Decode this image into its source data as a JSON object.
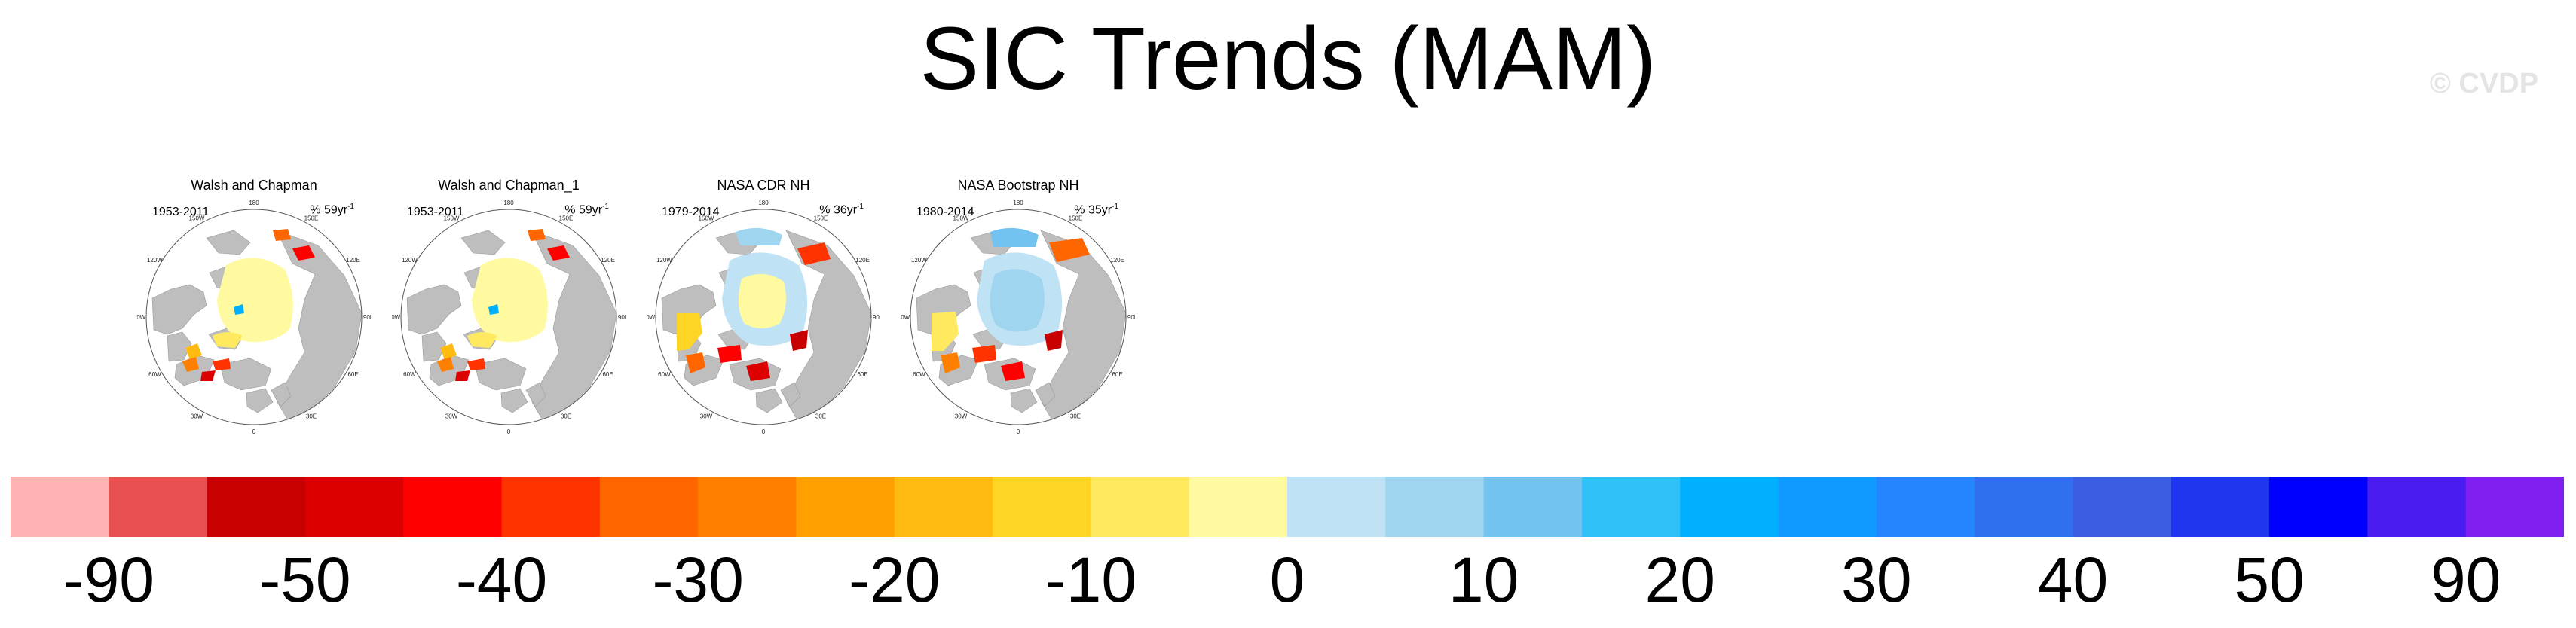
{
  "title": "SIC Trends (MAM)",
  "watermark": "© CVDP",
  "panels": [
    {
      "title": "Walsh and Chapman",
      "years": "1953-2011",
      "scale": "% 59yr",
      "scale_exp": "-1",
      "style": "walsh"
    },
    {
      "title": "Walsh and Chapman_1",
      "years": "1953-2011",
      "scale": "% 59yr",
      "scale_exp": "-1",
      "style": "walsh"
    },
    {
      "title": "NASA CDR NH",
      "years": "1979-2014",
      "scale": "% 36yr",
      "scale_exp": "-1",
      "style": "nasa"
    },
    {
      "title": "NASA Bootstrap NH",
      "years": "1980-2014",
      "scale": "% 35yr",
      "scale_exp": "-1",
      "style": "bootstrap"
    }
  ],
  "map": {
    "longitude_labels": [
      "180",
      "150E",
      "120E",
      "90E",
      "60E",
      "30E",
      "0",
      "30W",
      "60W",
      "90W",
      "120W",
      "150W"
    ],
    "land_color": "#bebebe",
    "ocean_color": "#ffffff"
  },
  "colorbar": {
    "colors": [
      "#ffb3b3",
      "#e65050",
      "#c80000",
      "#dc0000",
      "#ff0000",
      "#ff3300",
      "#ff6600",
      "#ff8000",
      "#ffa000",
      "#ffbb10",
      "#ffd525",
      "#ffea5f",
      "#fffaa0",
      "#bfe3f5",
      "#a0d5f0",
      "#72c3f0",
      "#30c0f8",
      "#00b0ff",
      "#1099ff",
      "#2585ff",
      "#3070ee",
      "#3b5de0",
      "#2035f0",
      "#0000ff",
      "#4a1cf0",
      "#8020f0"
    ],
    "labels": [
      {
        "text": "-90",
        "boundary": 1
      },
      {
        "text": "-50",
        "boundary": 3
      },
      {
        "text": "-40",
        "boundary": 5
      },
      {
        "text": "-30",
        "boundary": 7
      },
      {
        "text": "-20",
        "boundary": 9
      },
      {
        "text": "-10",
        "boundary": 11
      },
      {
        "text": "0",
        "boundary": 13
      },
      {
        "text": "10",
        "boundary": 15
      },
      {
        "text": "20",
        "boundary": 17
      },
      {
        "text": "30",
        "boundary": 19
      },
      {
        "text": "40",
        "boundary": 21
      },
      {
        "text": "50",
        "boundary": 23
      },
      {
        "text": "90",
        "boundary": 25
      }
    ]
  }
}
